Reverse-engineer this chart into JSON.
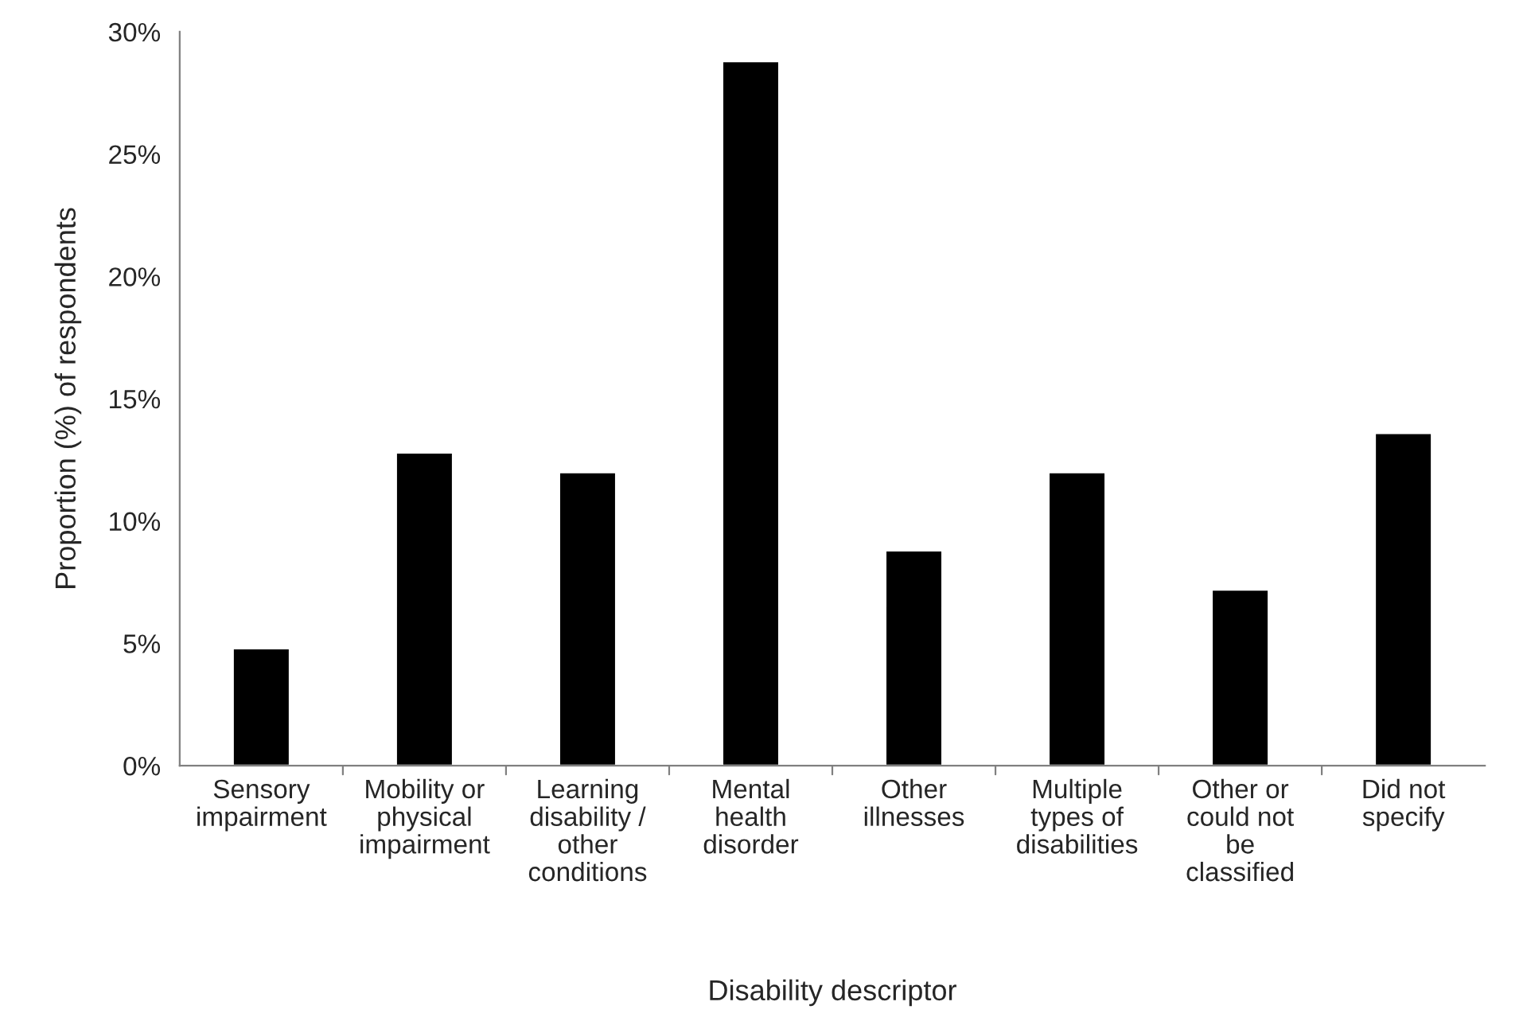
{
  "chart_data": {
    "type": "bar",
    "xlabel": "Disability descriptor",
    "ylabel": "Proportion (%) of respondents",
    "categories": [
      "Sensory\nimpairment",
      "Mobility or\nphysical\nimpairment",
      "Learning\ndisability /\nother\nconditions",
      "Mental\nhealth\ndisorder",
      "Other\nillnesses",
      "Multiple\ntypes of\ndisabilities",
      "Other or\ncould not\nbe\nclassified",
      "Did not\nspecify"
    ],
    "values": [
      4.8,
      12.8,
      12.0,
      28.8,
      8.8,
      12.0,
      7.2,
      13.6
    ],
    "color": "#000000",
    "ylim": [
      0,
      30
    ],
    "yticks": [
      {
        "value": 0,
        "label": "0%"
      },
      {
        "value": 5,
        "label": "5%"
      },
      {
        "value": 10,
        "label": "10%"
      },
      {
        "value": 15,
        "label": "15%"
      },
      {
        "value": 20,
        "label": "20%"
      },
      {
        "value": 25,
        "label": "25%"
      },
      {
        "value": 30,
        "label": "30%"
      }
    ],
    "grid": false,
    "legend": false
  }
}
